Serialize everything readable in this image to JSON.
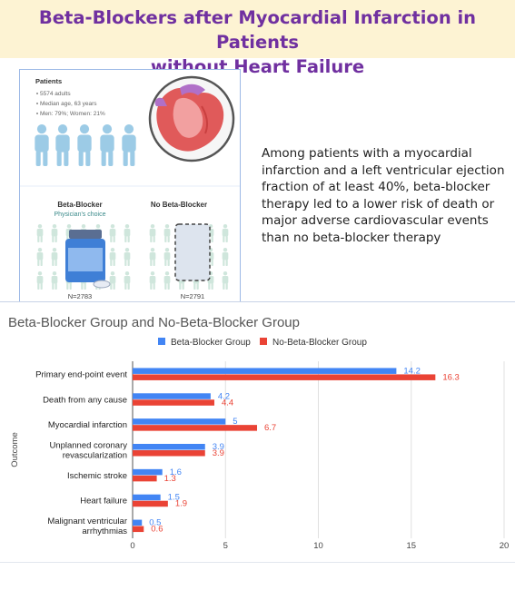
{
  "header": {
    "title_line1": "Beta-Blockers after Myocardial Infarction in Patients",
    "title_line2": "without Heart Failure"
  },
  "infographic": {
    "patients_heading": "Patients",
    "patient_facts": [
      "5574 adults",
      "Median age, 63 years",
      "Men: 79%; Women: 21%"
    ],
    "group_beta_label": "Beta-Blocker",
    "group_beta_sublabel": "Physician's choice",
    "group_no_beta_label": "No Beta-Blocker",
    "group_beta_n": "N=2783",
    "group_no_beta_n": "N=2791"
  },
  "summary_text": "Among patients with a myocardial infarction and a left ventricular ejection fraction of at least 40%, beta-blocker therapy led to a lower risk of death or major adverse cardiovascular events than no beta-blocker therapy",
  "colors": {
    "title": "#7030a0",
    "title_band": "#fdf3d3",
    "beta_blocker": "#4285f4",
    "no_beta_blocker": "#ea4335"
  },
  "chart_data": {
    "type": "bar",
    "orientation": "horizontal",
    "title": "Beta-Blocker Group and No-Beta-Blocker Group",
    "xlabel": "",
    "ylabel": "Outcome",
    "xlim": [
      0,
      20
    ],
    "xticks": [
      0,
      5,
      10,
      15,
      20
    ],
    "grid": true,
    "legend_position": "top",
    "categories": [
      [
        "Primary end-point event"
      ],
      [
        "Death from any cause"
      ],
      [
        "Myocardial infarction"
      ],
      [
        "Unplanned coronary",
        "revascularization"
      ],
      [
        "Ischemic stroke"
      ],
      [
        "Heart failure"
      ],
      [
        "Malignant ventricular",
        "arrhythmias"
      ]
    ],
    "series": [
      {
        "name": "Beta-Blocker Group",
        "color": "#4285f4",
        "values": [
          14.2,
          4.2,
          5,
          3.9,
          1.6,
          1.5,
          0.5
        ]
      },
      {
        "name": "No-Beta-Blocker Group",
        "color": "#ea4335",
        "values": [
          16.3,
          4.4,
          6.7,
          3.9,
          1.3,
          1.9,
          0.6
        ]
      }
    ]
  }
}
